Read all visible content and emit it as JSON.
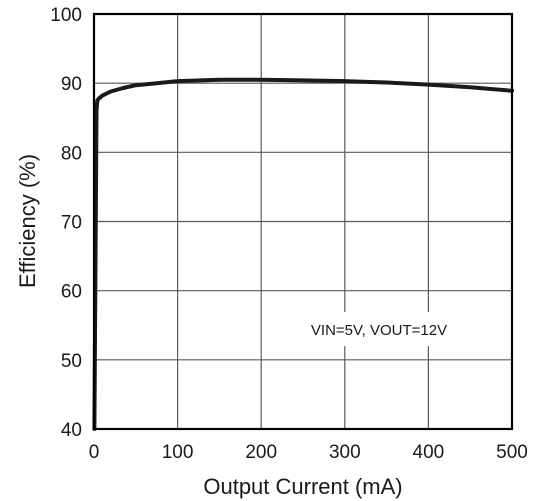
{
  "chart_data": {
    "type": "line",
    "title": "",
    "xlabel": "Output Current (mA)",
    "ylabel": "Efficiency (%)",
    "xlim": [
      0,
      500
    ],
    "ylim": [
      40,
      100
    ],
    "xticks": [
      0,
      100,
      200,
      300,
      400,
      500
    ],
    "yticks": [
      40,
      50,
      60,
      70,
      80,
      90,
      100
    ],
    "xtick_labels": [
      "0",
      "100",
      "200",
      "300",
      "400",
      "500"
    ],
    "ytick_labels": [
      "40",
      "50",
      "60",
      "70",
      "80",
      "90",
      "100"
    ],
    "grid": true,
    "annotation": "VIN=5V, VOUT=12V",
    "series": [
      {
        "color": "#1a1a1a",
        "x": [
          0.5,
          3,
          4,
          6,
          10,
          20,
          35,
          50,
          75,
          100,
          150,
          200,
          250,
          300,
          350,
          400,
          450,
          500
        ],
        "y": [
          40,
          86,
          87.5,
          87.8,
          88.2,
          88.8,
          89.3,
          89.7,
          90.0,
          90.3,
          90.5,
          90.5,
          90.4,
          90.3,
          90.1,
          89.8,
          89.4,
          88.9
        ]
      }
    ]
  }
}
